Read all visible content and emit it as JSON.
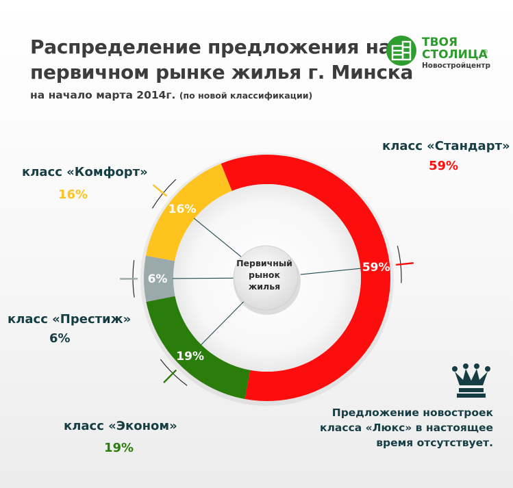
{
  "header": {
    "title_line1": "Распределение предложения на",
    "title_line2": "первичном рынке жилья г. Минска",
    "subtitle": "на начало марта 2014г.",
    "subtitle_note": "(по новой классификации)"
  },
  "logo": {
    "name_line1": "ТВОЯ",
    "name_line2": "СТОЛИЦА",
    "registered_mark": "®",
    "tagline": "Новостройцентр",
    "icon": "building-icon"
  },
  "chart_data": {
    "type": "pie",
    "center_label": [
      "Первичный",
      "рынок",
      "жилья"
    ],
    "series": [
      {
        "name": "класс «Стандарт»",
        "value": 59,
        "label": "59%",
        "color": "#fd0d0d"
      },
      {
        "name": "класс «Эконом»",
        "value": 19,
        "label": "19%",
        "color": "#2a7d0b"
      },
      {
        "name": "класс «Престиж»",
        "value": 6,
        "label": "6%",
        "color": "#9aa9a9"
      },
      {
        "name": "класс «Комфорт»",
        "value": 16,
        "label": "16%",
        "color": "#ffc31f"
      }
    ]
  },
  "callouts": {
    "standard": {
      "name": "класс «Стандарт»",
      "pct": "59%"
    },
    "comfort": {
      "name": "класс «Комфорт»",
      "pct": "16%"
    },
    "prestige": {
      "name": "класс «Престиж»",
      "pct": "6%"
    },
    "economy": {
      "name": "класс «Эконом»",
      "pct": "19%"
    }
  },
  "lux_note": {
    "line1": "Предложение новостроек",
    "line2": "класса «Люкс» в настоящее",
    "line3": "время отсутствует.",
    "icon": "crown-icon"
  },
  "colors": {
    "standard": "#fd0d0d",
    "comfort": "#ffc31f",
    "prestige": "#9aa9a9",
    "economy": "#2a7d0b",
    "brand": "#2a9a2a",
    "dark_text": "#153d43"
  }
}
